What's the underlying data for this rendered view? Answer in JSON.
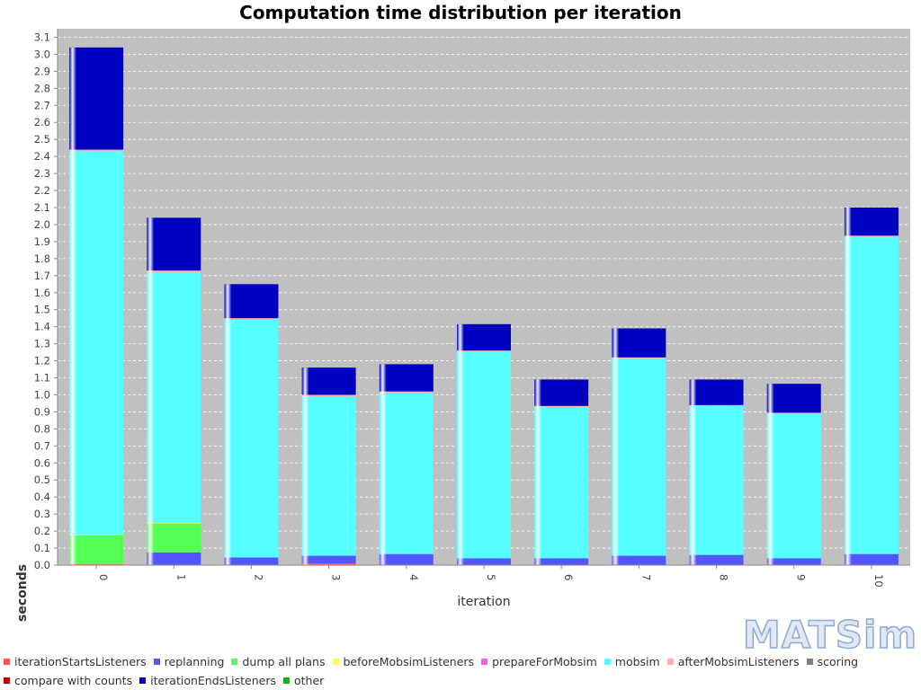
{
  "chart_data": {
    "type": "bar",
    "stacked": true,
    "title": "Computation time distribution per iteration",
    "xlabel": "iteration",
    "ylabel": "seconds",
    "ylim": [
      0,
      3.15
    ],
    "yticks": [
      0.0,
      0.1,
      0.2,
      0.3,
      0.4,
      0.5,
      0.6,
      0.7,
      0.8,
      0.9,
      1.0,
      1.1,
      1.2,
      1.3,
      1.4,
      1.5,
      1.6,
      1.7,
      1.8,
      1.9,
      2.0,
      2.1,
      2.2,
      2.3,
      2.4,
      2.5,
      2.6,
      2.7,
      2.8,
      2.9,
      3.0,
      3.1
    ],
    "ytick_labels": [
      "0.0",
      "0.1",
      "0.2",
      "0.3",
      "0.4",
      "0.5",
      "0.6",
      "0.7",
      "0.8",
      "0.9",
      "1.0",
      "1.1",
      "1.2",
      "1.3",
      "1.4",
      "1.5",
      "1.6",
      "1.7",
      "1.8",
      "1.9",
      "2.0",
      "2.1",
      "2.2",
      "2.3",
      "2.4",
      "2.5",
      "2.6",
      "2.7",
      "2.8",
      "2.9",
      "3.0",
      "3.1"
    ],
    "grid": true,
    "legend_position": "bottom",
    "categories": [
      "0",
      "1",
      "2",
      "3",
      "4",
      "5",
      "6",
      "7",
      "8",
      "9",
      "10"
    ],
    "series": [
      {
        "name": "iterationStartsListeners",
        "color": "#ff5555",
        "values": [
          0.005,
          0.0,
          0.0,
          0.01,
          0.0,
          0.0,
          0.0,
          0.0,
          0.0,
          0.0,
          0.0
        ]
      },
      {
        "name": "replanning",
        "color": "#5555ff",
        "values": [
          0.0,
          0.075,
          0.045,
          0.045,
          0.065,
          0.04,
          0.04,
          0.055,
          0.06,
          0.04,
          0.065
        ]
      },
      {
        "name": "dump all plans",
        "color": "#55ff55",
        "values": [
          0.17,
          0.17,
          0.0,
          0.0,
          0.0,
          0.0,
          0.0,
          0.0,
          0.0,
          0.0,
          0.0
        ]
      },
      {
        "name": "beforeMobsimListeners",
        "color": "#ffff55",
        "values": [
          0.005,
          0.005,
          0.0,
          0.0,
          0.0,
          0.0,
          0.0,
          0.0,
          0.0,
          0.0,
          0.0
        ]
      },
      {
        "name": "prepareForMobsim",
        "color": "#ff55ff",
        "values": [
          0.0,
          0.0,
          0.0,
          0.0,
          0.0,
          0.0,
          0.0,
          0.0,
          0.0,
          0.0,
          0.0
        ]
      },
      {
        "name": "mobsim",
        "color": "#55ffff",
        "values": [
          2.25,
          1.47,
          1.4,
          0.935,
          0.945,
          1.215,
          0.89,
          1.16,
          0.875,
          0.85,
          1.86
        ]
      },
      {
        "name": "afterMobsimListeners",
        "color": "#ffafaf",
        "values": [
          0.01,
          0.01,
          0.005,
          0.01,
          0.01,
          0.005,
          0.005,
          0.005,
          0.005,
          0.005,
          0.01
        ]
      },
      {
        "name": "scoring",
        "color": "#808080",
        "values": [
          0.0,
          0.0,
          0.0,
          0.0,
          0.0,
          0.0,
          0.0,
          0.0,
          0.0,
          0.0,
          0.0
        ]
      },
      {
        "name": "compare with counts",
        "color": "#c00000",
        "values": [
          0.0,
          0.0,
          0.0,
          0.0,
          0.0,
          0.0,
          0.0,
          0.0,
          0.0,
          0.0,
          0.0
        ]
      },
      {
        "name": "iterationEndsListeners",
        "color": "#0000c0",
        "values": [
          0.6,
          0.31,
          0.2,
          0.16,
          0.16,
          0.155,
          0.155,
          0.17,
          0.15,
          0.17,
          0.165
        ]
      },
      {
        "name": "other",
        "color": "#00c000",
        "values": [
          0.0,
          0.0,
          0.0,
          0.0,
          0.0,
          0.0,
          0.0,
          0.0,
          0.0,
          0.0,
          0.0
        ]
      }
    ]
  },
  "logo": {
    "text": "MATSim"
  },
  "colors": {
    "plot_background": "#c0c0c0",
    "gridline": "#ffffff"
  }
}
